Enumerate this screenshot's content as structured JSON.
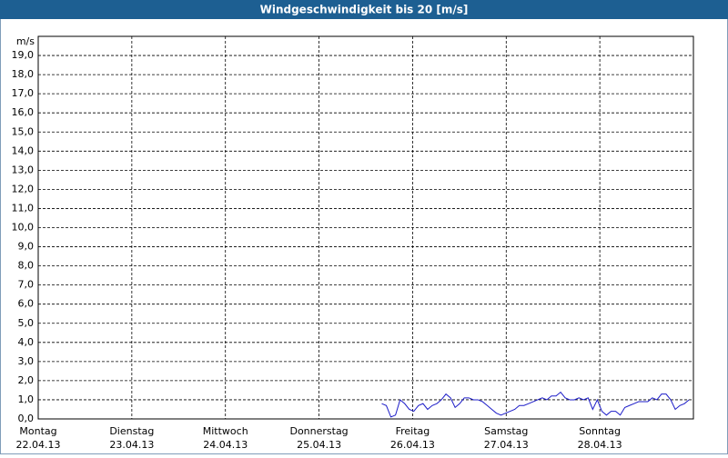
{
  "chart_data": {
    "type": "line",
    "title": "Windgeschwindigkeit bis 20 [m/s]",
    "y_unit": "m/s",
    "xlim": [
      0,
      7
    ],
    "xticks": [
      {
        "value": 0,
        "label": "Montag"
      },
      {
        "value": 1,
        "label": "Dienstag"
      },
      {
        "value": 2,
        "label": "Mittwoch"
      },
      {
        "value": 3,
        "label": "Donnerstag"
      },
      {
        "value": 4,
        "label": "Freitag"
      },
      {
        "value": 5,
        "label": "Samstag"
      },
      {
        "value": 6,
        "label": "Sonntag"
      }
    ],
    "xtick_dates": [
      "22.04.13",
      "23.04.13",
      "24.04.13",
      "25.04.13",
      "26.04.13",
      "27.04.13",
      "28.04.13"
    ],
    "ylim": [
      0,
      20
    ],
    "yticks": [
      {
        "value": 0,
        "label": "0,0"
      },
      {
        "value": 1,
        "label": "1,0"
      },
      {
        "value": 2,
        "label": "2,0"
      },
      {
        "value": 3,
        "label": "3,0"
      },
      {
        "value": 4,
        "label": "4,0"
      },
      {
        "value": 5,
        "label": "5,0"
      },
      {
        "value": 6,
        "label": "6,0"
      },
      {
        "value": 7,
        "label": "7,0"
      },
      {
        "value": 8,
        "label": "8,0"
      },
      {
        "value": 9,
        "label": "9,0"
      },
      {
        "value": 10,
        "label": "10,0"
      },
      {
        "value": 11,
        "label": "11,0"
      },
      {
        "value": 12,
        "label": "12,0"
      },
      {
        "value": 13,
        "label": "13,0"
      },
      {
        "value": 14,
        "label": "14,0"
      },
      {
        "value": 15,
        "label": "15,0"
      },
      {
        "value": 16,
        "label": "16,0"
      },
      {
        "value": 17,
        "label": "17,0"
      },
      {
        "value": 18,
        "label": "18,0"
      },
      {
        "value": 19,
        "label": "19,0"
      }
    ],
    "grid": true,
    "color": "#1c1cc8",
    "x": [
      3.67,
      3.719,
      3.768,
      3.817,
      3.866,
      3.915,
      3.964,
      4.013,
      4.062,
      4.111,
      4.16,
      4.209,
      4.258,
      4.307,
      4.356,
      4.405,
      4.454,
      4.503,
      4.552,
      4.601,
      4.65,
      4.699,
      4.748,
      4.797,
      4.846,
      4.895,
      4.944,
      4.993,
      5.042,
      5.091,
      5.14,
      5.189,
      5.238,
      5.287,
      5.336,
      5.385,
      5.434,
      5.483,
      5.532,
      5.581,
      5.63,
      5.679,
      5.728,
      5.777,
      5.826,
      5.875,
      5.924,
      5.973,
      6.022,
      6.071,
      6.12,
      6.169,
      6.218,
      6.267,
      6.316,
      6.365,
      6.414,
      6.463,
      6.512,
      6.561,
      6.61,
      6.659,
      6.708,
      6.757,
      6.806,
      6.855,
      6.904,
      6.953
    ],
    "values": [
      0.8,
      0.7,
      0.1,
      0.2,
      1.0,
      0.8,
      0.5,
      0.4,
      0.7,
      0.8,
      0.5,
      0.7,
      0.8,
      1.0,
      1.3,
      1.1,
      0.6,
      0.8,
      1.1,
      1.1,
      1.0,
      1.0,
      0.9,
      0.7,
      0.5,
      0.3,
      0.2,
      0.3,
      0.4,
      0.5,
      0.7,
      0.7,
      0.8,
      0.9,
      1.0,
      1.1,
      1.0,
      1.2,
      1.2,
      1.4,
      1.1,
      1.0,
      1.0,
      1.1,
      1.0,
      1.1,
      0.5,
      1.0,
      0.4,
      0.2,
      0.4,
      0.4,
      0.2,
      0.6,
      0.7,
      0.8,
      0.9,
      0.9,
      0.9,
      1.1,
      1.0,
      1.3,
      1.3,
      1.0,
      0.5,
      0.7,
      0.8,
      1.0
    ]
  }
}
